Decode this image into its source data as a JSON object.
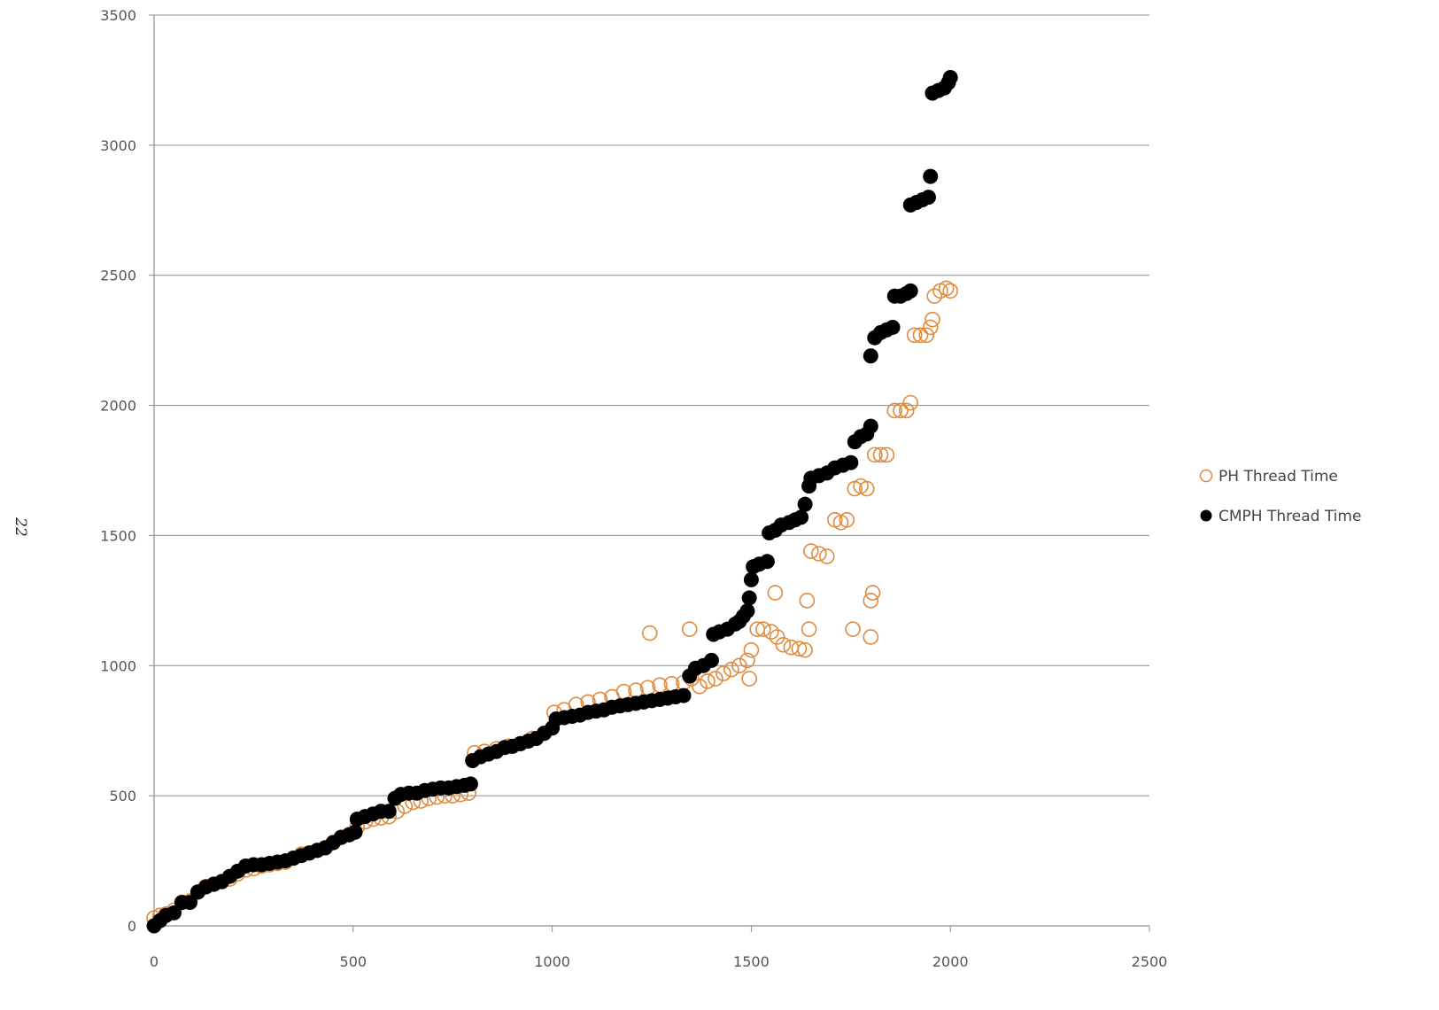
{
  "page": {
    "number": "22"
  },
  "chart_data": {
    "type": "scatter",
    "title": "",
    "xlabel": "",
    "ylabel": "",
    "xlim": [
      0,
      2500
    ],
    "ylim": [
      0,
      3500
    ],
    "x_ticks": [
      0,
      500,
      1000,
      1500,
      2000,
      2500
    ],
    "y_ticks": [
      0,
      500,
      1000,
      1500,
      2000,
      2500,
      3000,
      3500
    ],
    "grid": "horizontal",
    "legend_position": "right",
    "series": [
      {
        "name": "PH Thread Time",
        "marker": "open-circle",
        "color": "#E08A3C",
        "points": [
          [
            0,
            30
          ],
          [
            15,
            40
          ],
          [
            30,
            45
          ],
          [
            50,
            60
          ],
          [
            70,
            90
          ],
          [
            90,
            95
          ],
          [
            110,
            130
          ],
          [
            130,
            150
          ],
          [
            150,
            160
          ],
          [
            170,
            170
          ],
          [
            190,
            180
          ],
          [
            210,
            200
          ],
          [
            230,
            215
          ],
          [
            250,
            220
          ],
          [
            270,
            230
          ],
          [
            290,
            235
          ],
          [
            310,
            240
          ],
          [
            330,
            245
          ],
          [
            350,
            260
          ],
          [
            370,
            275
          ],
          [
            390,
            280
          ],
          [
            410,
            290
          ],
          [
            430,
            300
          ],
          [
            450,
            320
          ],
          [
            470,
            340
          ],
          [
            490,
            350
          ],
          [
            510,
            380
          ],
          [
            530,
            400
          ],
          [
            550,
            410
          ],
          [
            570,
            415
          ],
          [
            590,
            420
          ],
          [
            610,
            440
          ],
          [
            630,
            460
          ],
          [
            650,
            475
          ],
          [
            670,
            480
          ],
          [
            690,
            490
          ],
          [
            710,
            495
          ],
          [
            730,
            500
          ],
          [
            750,
            500
          ],
          [
            770,
            505
          ],
          [
            790,
            510
          ],
          [
            805,
            665
          ],
          [
            830,
            670
          ],
          [
            860,
            680
          ],
          [
            890,
            690
          ],
          [
            920,
            700
          ],
          [
            950,
            720
          ],
          [
            980,
            740
          ],
          [
            1005,
            820
          ],
          [
            1030,
            830
          ],
          [
            1060,
            850
          ],
          [
            1090,
            860
          ],
          [
            1120,
            870
          ],
          [
            1150,
            880
          ],
          [
            1180,
            900
          ],
          [
            1210,
            905
          ],
          [
            1240,
            915
          ],
          [
            1270,
            925
          ],
          [
            1300,
            930
          ],
          [
            1330,
            935
          ],
          [
            1350,
            950
          ],
          [
            1245,
            1125
          ],
          [
            1345,
            1140
          ],
          [
            1370,
            920
          ],
          [
            1390,
            940
          ],
          [
            1410,
            950
          ],
          [
            1430,
            970
          ],
          [
            1450,
            985
          ],
          [
            1470,
            1000
          ],
          [
            1490,
            1020
          ],
          [
            1500,
            1060
          ],
          [
            1495,
            950
          ],
          [
            1515,
            1140
          ],
          [
            1530,
            1140
          ],
          [
            1550,
            1130
          ],
          [
            1565,
            1110
          ],
          [
            1580,
            1080
          ],
          [
            1600,
            1070
          ],
          [
            1620,
            1065
          ],
          [
            1635,
            1060
          ],
          [
            1645,
            1140
          ],
          [
            1560,
            1280
          ],
          [
            1640,
            1250
          ],
          [
            1650,
            1440
          ],
          [
            1670,
            1430
          ],
          [
            1690,
            1420
          ],
          [
            1710,
            1560
          ],
          [
            1725,
            1550
          ],
          [
            1740,
            1560
          ],
          [
            1755,
            1140
          ],
          [
            1760,
            1680
          ],
          [
            1775,
            1690
          ],
          [
            1790,
            1680
          ],
          [
            1800,
            1110
          ],
          [
            1800,
            1250
          ],
          [
            1805,
            1280
          ],
          [
            1810,
            1810
          ],
          [
            1825,
            1810
          ],
          [
            1840,
            1810
          ],
          [
            1860,
            1980
          ],
          [
            1875,
            1980
          ],
          [
            1890,
            1980
          ],
          [
            1900,
            2010
          ],
          [
            1910,
            2270
          ],
          [
            1925,
            2270
          ],
          [
            1940,
            2270
          ],
          [
            1950,
            2300
          ],
          [
            1955,
            2330
          ],
          [
            1960,
            2420
          ],
          [
            1975,
            2440
          ],
          [
            1990,
            2450
          ],
          [
            2000,
            2440
          ]
        ]
      },
      {
        "name": "CMPH Thread Time",
        "marker": "filled-circle",
        "color": "#000000",
        "points": [
          [
            0,
            0
          ],
          [
            15,
            20
          ],
          [
            30,
            40
          ],
          [
            50,
            50
          ],
          [
            70,
            90
          ],
          [
            90,
            90
          ],
          [
            110,
            130
          ],
          [
            130,
            150
          ],
          [
            150,
            160
          ],
          [
            170,
            170
          ],
          [
            190,
            190
          ],
          [
            210,
            210
          ],
          [
            230,
            230
          ],
          [
            250,
            235
          ],
          [
            270,
            235
          ],
          [
            290,
            240
          ],
          [
            310,
            245
          ],
          [
            330,
            250
          ],
          [
            350,
            260
          ],
          [
            370,
            270
          ],
          [
            390,
            280
          ],
          [
            410,
            290
          ],
          [
            430,
            300
          ],
          [
            450,
            320
          ],
          [
            470,
            340
          ],
          [
            490,
            350
          ],
          [
            505,
            360
          ],
          [
            510,
            410
          ],
          [
            530,
            420
          ],
          [
            550,
            430
          ],
          [
            570,
            440
          ],
          [
            590,
            440
          ],
          [
            605,
            490
          ],
          [
            620,
            505
          ],
          [
            640,
            510
          ],
          [
            660,
            510
          ],
          [
            680,
            520
          ],
          [
            700,
            525
          ],
          [
            720,
            530
          ],
          [
            740,
            530
          ],
          [
            760,
            535
          ],
          [
            780,
            540
          ],
          [
            795,
            545
          ],
          [
            800,
            635
          ],
          [
            820,
            650
          ],
          [
            840,
            660
          ],
          [
            860,
            670
          ],
          [
            880,
            685
          ],
          [
            900,
            690
          ],
          [
            920,
            700
          ],
          [
            940,
            710
          ],
          [
            960,
            720
          ],
          [
            980,
            740
          ],
          [
            1000,
            760
          ],
          [
            1010,
            795
          ],
          [
            1030,
            800
          ],
          [
            1050,
            805
          ],
          [
            1070,
            810
          ],
          [
            1090,
            820
          ],
          [
            1110,
            825
          ],
          [
            1130,
            830
          ],
          [
            1150,
            840
          ],
          [
            1170,
            845
          ],
          [
            1190,
            850
          ],
          [
            1210,
            855
          ],
          [
            1230,
            860
          ],
          [
            1250,
            865
          ],
          [
            1270,
            870
          ],
          [
            1290,
            875
          ],
          [
            1310,
            880
          ],
          [
            1330,
            885
          ],
          [
            1345,
            960
          ],
          [
            1360,
            990
          ],
          [
            1380,
            1000
          ],
          [
            1400,
            1020
          ],
          [
            1405,
            1120
          ],
          [
            1420,
            1130
          ],
          [
            1440,
            1140
          ],
          [
            1460,
            1160
          ],
          [
            1470,
            1170
          ],
          [
            1480,
            1190
          ],
          [
            1490,
            1210
          ],
          [
            1495,
            1260
          ],
          [
            1500,
            1330
          ],
          [
            1505,
            1380
          ],
          [
            1520,
            1390
          ],
          [
            1540,
            1400
          ],
          [
            1545,
            1510
          ],
          [
            1560,
            1520
          ],
          [
            1575,
            1540
          ],
          [
            1595,
            1550
          ],
          [
            1610,
            1560
          ],
          [
            1625,
            1570
          ],
          [
            1635,
            1620
          ],
          [
            1645,
            1690
          ],
          [
            1650,
            1720
          ],
          [
            1670,
            1730
          ],
          [
            1690,
            1740
          ],
          [
            1710,
            1760
          ],
          [
            1730,
            1770
          ],
          [
            1750,
            1780
          ],
          [
            1760,
            1860
          ],
          [
            1775,
            1880
          ],
          [
            1790,
            1890
          ],
          [
            1800,
            1920
          ],
          [
            1800,
            2190
          ],
          [
            1810,
            2260
          ],
          [
            1825,
            2280
          ],
          [
            1840,
            2290
          ],
          [
            1855,
            2300
          ],
          [
            1860,
            2420
          ],
          [
            1875,
            2420
          ],
          [
            1890,
            2430
          ],
          [
            1900,
            2440
          ],
          [
            1900,
            2770
          ],
          [
            1915,
            2780
          ],
          [
            1930,
            2790
          ],
          [
            1945,
            2800
          ],
          [
            1950,
            2880
          ],
          [
            1955,
            3200
          ],
          [
            1970,
            3210
          ],
          [
            1985,
            3220
          ],
          [
            1995,
            3240
          ],
          [
            2000,
            3260
          ]
        ]
      }
    ]
  }
}
